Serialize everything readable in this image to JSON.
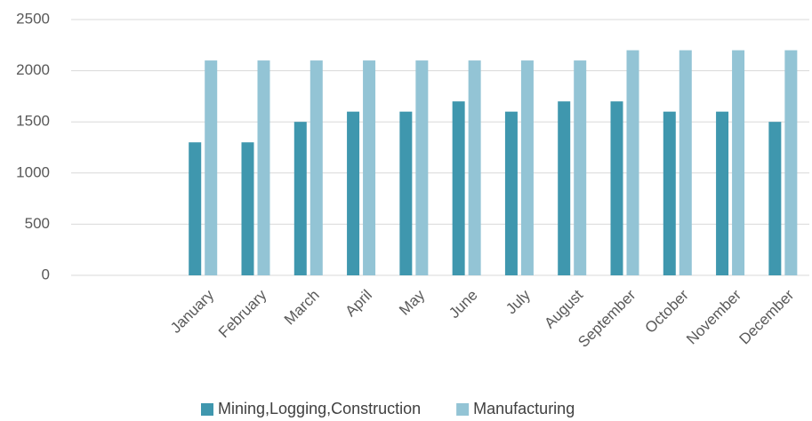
{
  "chart_data": {
    "type": "bar",
    "categories": [
      null,
      null,
      "January",
      "February",
      "March",
      "April",
      "May",
      "June",
      "July",
      "August",
      "September",
      "October",
      "November",
      "December"
    ],
    "series": [
      {
        "name": "Mining,Logging,Construction",
        "color": "#3f97ae",
        "values": [
          null,
          null,
          1300,
          1300,
          1500,
          1600,
          1600,
          1700,
          1600,
          1700,
          1700,
          1600,
          1600,
          1500
        ]
      },
      {
        "name": "Manufacturing",
        "color": "#93c4d5",
        "values": [
          null,
          null,
          2100,
          2100,
          2100,
          2100,
          2100,
          2100,
          2100,
          2100,
          2200,
          2200,
          2200,
          2200
        ]
      }
    ],
    "ylim": [
      0,
      2500
    ],
    "yticks": [
      0,
      500,
      1000,
      1500,
      2000,
      2500
    ],
    "grid": true,
    "legend": "bottom"
  }
}
